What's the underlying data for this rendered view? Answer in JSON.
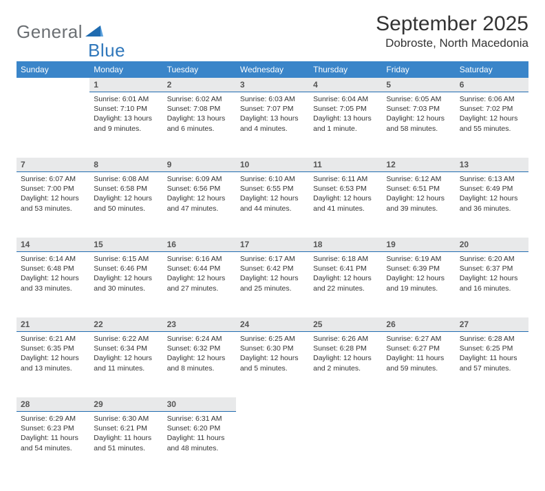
{
  "logo": {
    "text1": "General",
    "text2": "Blue"
  },
  "title": "September 2025",
  "location": "Dobroste, North Macedonia",
  "colors": {
    "header_bg": "#3a85c9",
    "header_text": "#ffffff",
    "daynum_bg": "#e8e9ea",
    "daynum_border": "#1f6bb0",
    "logo_gray": "#6b6f73",
    "logo_blue": "#2f77bb",
    "page_bg": "#ffffff",
    "body_text": "#333333"
  },
  "typography": {
    "title_fontsize": 30,
    "location_fontsize": 17,
    "logo_fontsize": 26,
    "dayhead_fontsize": 12,
    "daynum_fontsize": 12,
    "cell_fontsize": 10.5
  },
  "days_of_week": [
    "Sunday",
    "Monday",
    "Tuesday",
    "Wednesday",
    "Thursday",
    "Friday",
    "Saturday"
  ],
  "weeks": [
    [
      null,
      {
        "n": "1",
        "sunrise": "Sunrise: 6:01 AM",
        "sunset": "Sunset: 7:10 PM",
        "daylight": "Daylight: 13 hours and 9 minutes."
      },
      {
        "n": "2",
        "sunrise": "Sunrise: 6:02 AM",
        "sunset": "Sunset: 7:08 PM",
        "daylight": "Daylight: 13 hours and 6 minutes."
      },
      {
        "n": "3",
        "sunrise": "Sunrise: 6:03 AM",
        "sunset": "Sunset: 7:07 PM",
        "daylight": "Daylight: 13 hours and 4 minutes."
      },
      {
        "n": "4",
        "sunrise": "Sunrise: 6:04 AM",
        "sunset": "Sunset: 7:05 PM",
        "daylight": "Daylight: 13 hours and 1 minute."
      },
      {
        "n": "5",
        "sunrise": "Sunrise: 6:05 AM",
        "sunset": "Sunset: 7:03 PM",
        "daylight": "Daylight: 12 hours and 58 minutes."
      },
      {
        "n": "6",
        "sunrise": "Sunrise: 6:06 AM",
        "sunset": "Sunset: 7:02 PM",
        "daylight": "Daylight: 12 hours and 55 minutes."
      }
    ],
    [
      {
        "n": "7",
        "sunrise": "Sunrise: 6:07 AM",
        "sunset": "Sunset: 7:00 PM",
        "daylight": "Daylight: 12 hours and 53 minutes."
      },
      {
        "n": "8",
        "sunrise": "Sunrise: 6:08 AM",
        "sunset": "Sunset: 6:58 PM",
        "daylight": "Daylight: 12 hours and 50 minutes."
      },
      {
        "n": "9",
        "sunrise": "Sunrise: 6:09 AM",
        "sunset": "Sunset: 6:56 PM",
        "daylight": "Daylight: 12 hours and 47 minutes."
      },
      {
        "n": "10",
        "sunrise": "Sunrise: 6:10 AM",
        "sunset": "Sunset: 6:55 PM",
        "daylight": "Daylight: 12 hours and 44 minutes."
      },
      {
        "n": "11",
        "sunrise": "Sunrise: 6:11 AM",
        "sunset": "Sunset: 6:53 PM",
        "daylight": "Daylight: 12 hours and 41 minutes."
      },
      {
        "n": "12",
        "sunrise": "Sunrise: 6:12 AM",
        "sunset": "Sunset: 6:51 PM",
        "daylight": "Daylight: 12 hours and 39 minutes."
      },
      {
        "n": "13",
        "sunrise": "Sunrise: 6:13 AM",
        "sunset": "Sunset: 6:49 PM",
        "daylight": "Daylight: 12 hours and 36 minutes."
      }
    ],
    [
      {
        "n": "14",
        "sunrise": "Sunrise: 6:14 AM",
        "sunset": "Sunset: 6:48 PM",
        "daylight": "Daylight: 12 hours and 33 minutes."
      },
      {
        "n": "15",
        "sunrise": "Sunrise: 6:15 AM",
        "sunset": "Sunset: 6:46 PM",
        "daylight": "Daylight: 12 hours and 30 minutes."
      },
      {
        "n": "16",
        "sunrise": "Sunrise: 6:16 AM",
        "sunset": "Sunset: 6:44 PM",
        "daylight": "Daylight: 12 hours and 27 minutes."
      },
      {
        "n": "17",
        "sunrise": "Sunrise: 6:17 AM",
        "sunset": "Sunset: 6:42 PM",
        "daylight": "Daylight: 12 hours and 25 minutes."
      },
      {
        "n": "18",
        "sunrise": "Sunrise: 6:18 AM",
        "sunset": "Sunset: 6:41 PM",
        "daylight": "Daylight: 12 hours and 22 minutes."
      },
      {
        "n": "19",
        "sunrise": "Sunrise: 6:19 AM",
        "sunset": "Sunset: 6:39 PM",
        "daylight": "Daylight: 12 hours and 19 minutes."
      },
      {
        "n": "20",
        "sunrise": "Sunrise: 6:20 AM",
        "sunset": "Sunset: 6:37 PM",
        "daylight": "Daylight: 12 hours and 16 minutes."
      }
    ],
    [
      {
        "n": "21",
        "sunrise": "Sunrise: 6:21 AM",
        "sunset": "Sunset: 6:35 PM",
        "daylight": "Daylight: 12 hours and 13 minutes."
      },
      {
        "n": "22",
        "sunrise": "Sunrise: 6:22 AM",
        "sunset": "Sunset: 6:34 PM",
        "daylight": "Daylight: 12 hours and 11 minutes."
      },
      {
        "n": "23",
        "sunrise": "Sunrise: 6:24 AM",
        "sunset": "Sunset: 6:32 PM",
        "daylight": "Daylight: 12 hours and 8 minutes."
      },
      {
        "n": "24",
        "sunrise": "Sunrise: 6:25 AM",
        "sunset": "Sunset: 6:30 PM",
        "daylight": "Daylight: 12 hours and 5 minutes."
      },
      {
        "n": "25",
        "sunrise": "Sunrise: 6:26 AM",
        "sunset": "Sunset: 6:28 PM",
        "daylight": "Daylight: 12 hours and 2 minutes."
      },
      {
        "n": "26",
        "sunrise": "Sunrise: 6:27 AM",
        "sunset": "Sunset: 6:27 PM",
        "daylight": "Daylight: 11 hours and 59 minutes."
      },
      {
        "n": "27",
        "sunrise": "Sunrise: 6:28 AM",
        "sunset": "Sunset: 6:25 PM",
        "daylight": "Daylight: 11 hours and 57 minutes."
      }
    ],
    [
      {
        "n": "28",
        "sunrise": "Sunrise: 6:29 AM",
        "sunset": "Sunset: 6:23 PM",
        "daylight": "Daylight: 11 hours and 54 minutes."
      },
      {
        "n": "29",
        "sunrise": "Sunrise: 6:30 AM",
        "sunset": "Sunset: 6:21 PM",
        "daylight": "Daylight: 11 hours and 51 minutes."
      },
      {
        "n": "30",
        "sunrise": "Sunrise: 6:31 AM",
        "sunset": "Sunset: 6:20 PM",
        "daylight": "Daylight: 11 hours and 48 minutes."
      },
      null,
      null,
      null,
      null
    ]
  ]
}
